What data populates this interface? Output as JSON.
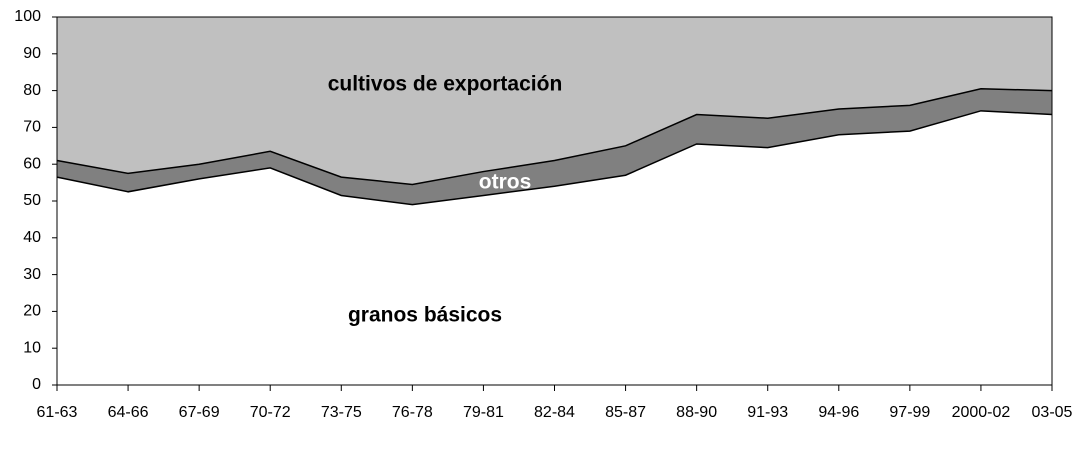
{
  "chart_data": {
    "type": "stacked_area",
    "categories": [
      "61-63",
      "64-66",
      "67-69",
      "70-72",
      "73-75",
      "76-78",
      "79-81",
      "82-84",
      "85-87",
      "88-90",
      "91-93",
      "94-96",
      "97-99",
      "2000-02",
      "03-05"
    ],
    "series": [
      {
        "name": "granos básicos",
        "color": "#ffffff",
        "values": [
          56.5,
          52.5,
          56,
          59,
          51.5,
          49,
          51.5,
          54,
          57,
          65.5,
          64.5,
          68,
          69,
          74.5,
          73.5
        ]
      },
      {
        "name": "otros",
        "color": "#808080",
        "values": [
          4.5,
          5,
          4,
          4.5,
          5,
          5.5,
          6.5,
          7,
          8,
          8,
          8,
          7,
          7,
          6,
          6.5
        ]
      },
      {
        "name": "cultivos de exportación",
        "color": "#c0c0c0",
        "values": [
          39,
          42.5,
          40,
          36.5,
          43.5,
          45.5,
          42,
          39,
          35,
          26.5,
          27.5,
          25,
          24,
          19.5,
          20
        ]
      }
    ],
    "ylim": [
      0,
      100
    ],
    "yticks": [
      0,
      10,
      20,
      30,
      40,
      50,
      60,
      70,
      80,
      90,
      100
    ]
  }
}
